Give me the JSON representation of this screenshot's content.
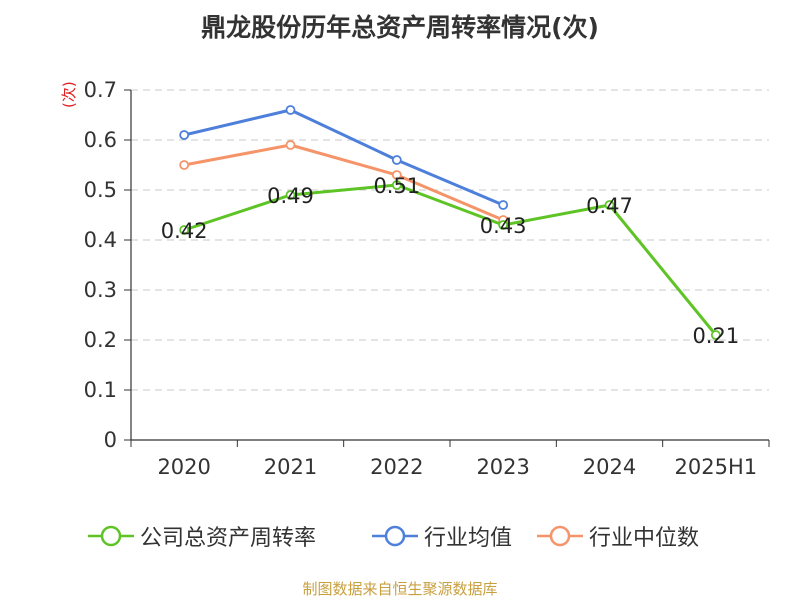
{
  "title": "鼎龙股份历年总资产周转率情况(次)",
  "source": "制图数据来自恒生聚源数据库",
  "chart_data": {
    "type": "line",
    "title": "鼎龙股份历年总资产周转率情况(次)",
    "xlabel": "",
    "ylabel": "(次)",
    "ylim": [
      0,
      0.7
    ],
    "yticks": [
      "0",
      "0.1",
      "0.2",
      "0.3",
      "0.4",
      "0.5",
      "0.6",
      "0.7"
    ],
    "categories": [
      "2020",
      "2021",
      "2022",
      "2023",
      "2024",
      "2025H1"
    ],
    "grid": true,
    "legend_position": "bottom",
    "series": [
      {
        "name": "公司总资产周转率",
        "color": "#5ec425",
        "values": [
          0.42,
          0.49,
          0.51,
          0.43,
          0.47,
          0.21
        ],
        "labels": [
          "0.42",
          "0.49",
          "0.51",
          "0.43",
          "0.47",
          "0.21"
        ]
      },
      {
        "name": "行业均值",
        "color": "#4d7fdb",
        "values": [
          0.61,
          0.66,
          0.56,
          0.47,
          null,
          null
        ]
      },
      {
        "name": "行业中位数",
        "color": "#f59468",
        "values": [
          0.55,
          0.59,
          0.53,
          0.44,
          null,
          null
        ]
      }
    ]
  }
}
